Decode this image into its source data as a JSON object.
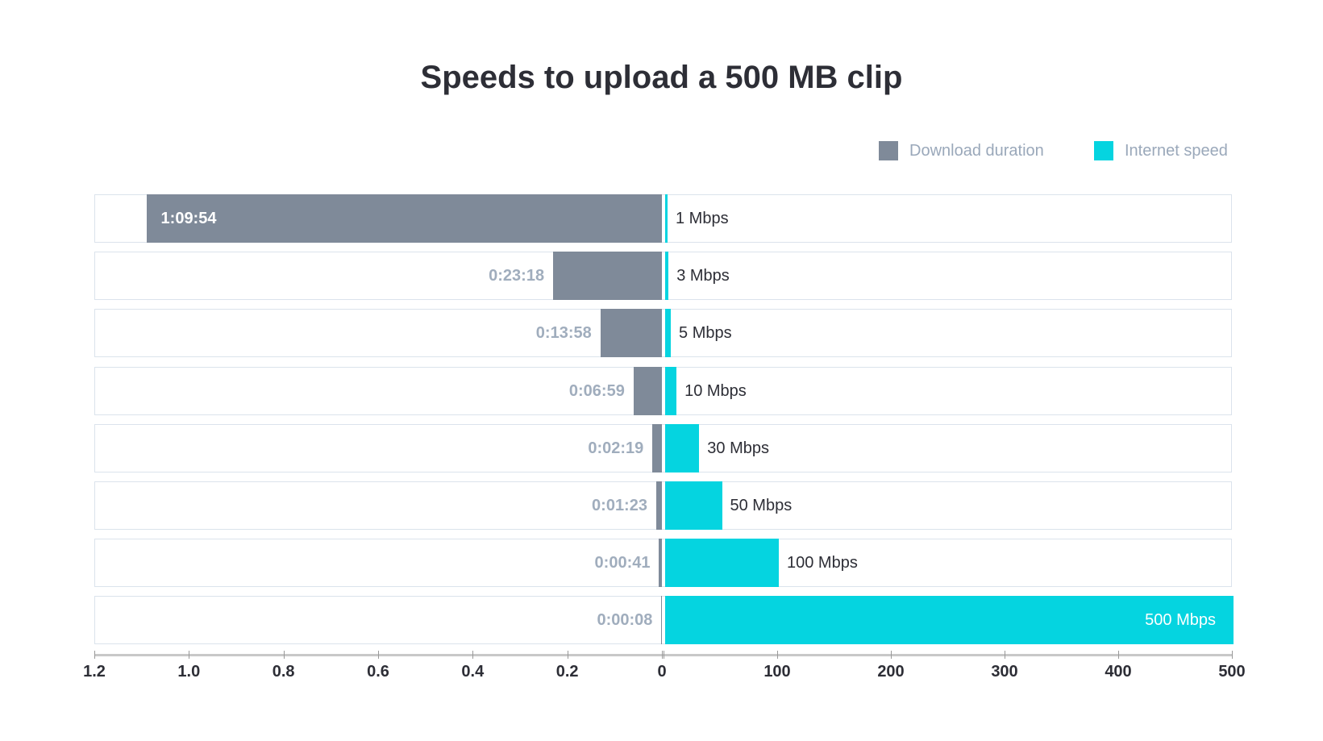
{
  "chart_data": {
    "type": "bar",
    "title": "Speeds to upload a 500 MB clip",
    "legend": {
      "position": "top-right"
    },
    "colors": {
      "duration": "#7f8a99",
      "speed": "#05d4e0",
      "duration_label": "#a0adbd",
      "title": "#2d2e36"
    },
    "series": [
      {
        "name": "Download duration",
        "values": [
          1.09,
          0.23,
          0.13,
          0.06,
          0.02,
          0.012,
          0.006,
          0.001
        ],
        "labels": [
          "1:09:54",
          "0:23:18",
          "0:13:58",
          "0:06:59",
          "0:02:19",
          "0:01:23",
          "0:00:41",
          "0:00:08"
        ]
      },
      {
        "name": "Internet speed",
        "values": [
          1,
          3,
          5,
          10,
          30,
          50,
          100,
          500
        ],
        "labels": [
          "1 Mbps",
          "3 Mbps",
          "5 Mbps",
          "10 Mbps",
          "30 Mbps",
          "50 Mbps",
          "100 Mbps",
          "500 Mbps"
        ]
      }
    ],
    "left_axis": {
      "range": [
        1.2,
        0
      ],
      "ticks": [
        "1.2",
        "1.0",
        "0.8",
        "0.6",
        "0.4",
        "0.2",
        "0"
      ]
    },
    "right_axis": {
      "range": [
        0,
        500
      ],
      "ticks": [
        "0",
        "100",
        "200",
        "300",
        "400",
        "500"
      ]
    },
    "grid": false
  }
}
